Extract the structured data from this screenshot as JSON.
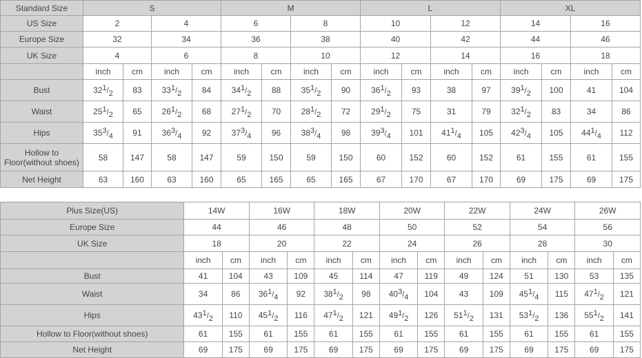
{
  "standard_table": {
    "header_label": "Standard Size",
    "groups": [
      "S",
      "M",
      "L",
      "XL"
    ],
    "us_label": "US Size",
    "us": [
      "2",
      "4",
      "6",
      "8",
      "10",
      "12",
      "14",
      "16"
    ],
    "eu_label": "Europe Size",
    "eu": [
      "32",
      "34",
      "36",
      "38",
      "40",
      "42",
      "44",
      "46"
    ],
    "uk_label": "UK Size",
    "uk": [
      "4",
      "6",
      "8",
      "10",
      "12",
      "14",
      "16",
      "18"
    ],
    "unit_inch": "inch",
    "unit_cm": "cm",
    "rows": [
      {
        "label": "Bust",
        "values": [
          "32 1/2",
          "83",
          "33 1/2",
          "84",
          "34 1/2",
          "88",
          "35 1/2",
          "90",
          "36 1/2",
          "93",
          "38",
          "97",
          "39 1/2",
          "100",
          "41",
          "104"
        ]
      },
      {
        "label": "Waist",
        "values": [
          "25 1/2",
          "65",
          "26 1/2",
          "68",
          "27 1/2",
          "70",
          "28 1/2",
          "72",
          "29 1/2",
          "75",
          "31",
          "79",
          "32 1/2",
          "83",
          "34",
          "86"
        ]
      },
      {
        "label": "Hips",
        "values": [
          "35 3/4",
          "91",
          "36 3/4",
          "92",
          "37 3/4",
          "96",
          "38 3/4",
          "98",
          "39 3/4",
          "101",
          "41 1/4",
          "105",
          "42 3/4",
          "105",
          "44 1/4",
          "112"
        ]
      },
      {
        "label": "Hollow to Floor(without shoes)",
        "values": [
          "58",
          "147",
          "58",
          "147",
          "59",
          "150",
          "59",
          "150",
          "60",
          "152",
          "60",
          "152",
          "61",
          "155",
          "61",
          "155"
        ]
      },
      {
        "label": "Net Height",
        "values": [
          "63",
          "160",
          "63",
          "160",
          "65",
          "165",
          "65",
          "165",
          "67",
          "170",
          "67",
          "170",
          "69",
          "175",
          "69",
          "175"
        ]
      }
    ]
  },
  "plus_table": {
    "header_label": "Plus Size(US)",
    "sizes": [
      "14W",
      "16W",
      "18W",
      "20W",
      "22W",
      "24W",
      "26W"
    ],
    "eu_label": "Europe Size",
    "eu": [
      "44",
      "46",
      "48",
      "50",
      "52",
      "54",
      "56"
    ],
    "uk_label": "UK Size",
    "uk": [
      "18",
      "20",
      "22",
      "24",
      "26",
      "28",
      "30"
    ],
    "unit_inch": "inch",
    "unit_cm": "cm",
    "rows": [
      {
        "label": "Bust",
        "values": [
          "41",
          "104",
          "43",
          "109",
          "45",
          "114",
          "47",
          "119",
          "49",
          "124",
          "51",
          "130",
          "53",
          "135"
        ]
      },
      {
        "label": "Waist",
        "values": [
          "34",
          "86",
          "36 1/4",
          "92",
          "38 1/2",
          "98",
          "40 3/4",
          "104",
          "43",
          "109",
          "45 1/4",
          "115",
          "47 1/2",
          "121"
        ]
      },
      {
        "label": "Hips",
        "values": [
          "43 1/2",
          "110",
          "45 1/2",
          "116",
          "47 1/2",
          "121",
          "49 1/2",
          "126",
          "51 1/2",
          "131",
          "53 1/2",
          "136",
          "55 1/2",
          "141"
        ]
      },
      {
        "label": "Hollow to Floor(without shoes)",
        "values": [
          "61",
          "155",
          "61",
          "155",
          "61",
          "155",
          "61",
          "155",
          "61",
          "155",
          "61",
          "155",
          "61",
          "155"
        ]
      },
      {
        "label": "Net Height",
        "values": [
          "69",
          "175",
          "69",
          "175",
          "69",
          "175",
          "69",
          "175",
          "69",
          "175",
          "69",
          "175",
          "69",
          "175"
        ]
      }
    ]
  },
  "colors": {
    "header_bg": "#d3d3d3",
    "border": "#a3a3a3",
    "text": "#444444"
  }
}
